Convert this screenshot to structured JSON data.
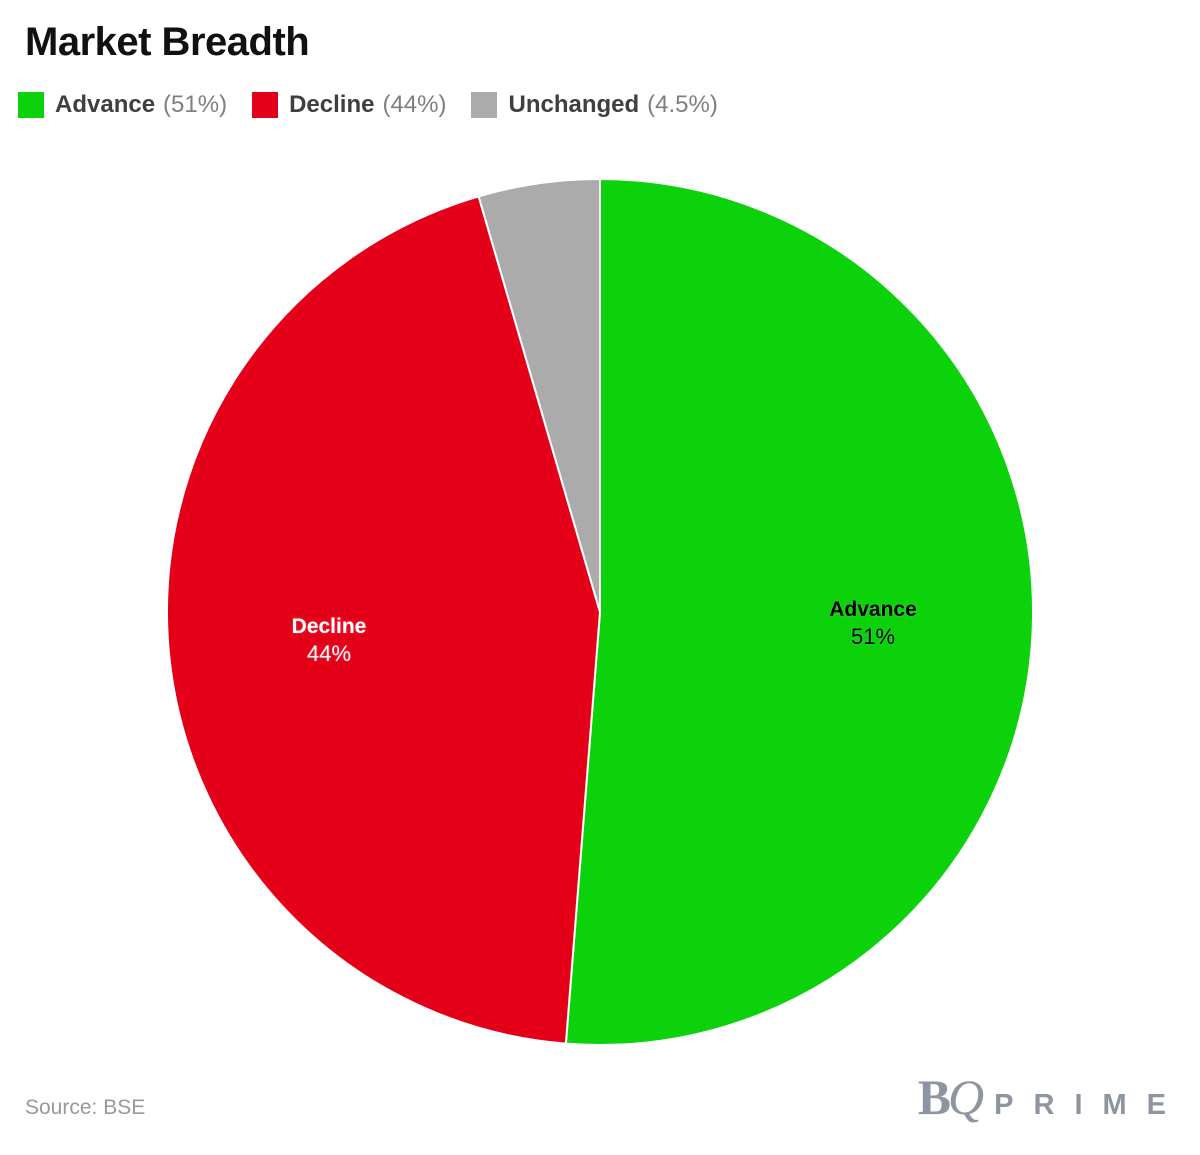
{
  "title": "Market Breadth",
  "source": "Source: BSE",
  "logo": {
    "b": "B",
    "q": "Q",
    "prime": "PRIME"
  },
  "chart_data": {
    "type": "pie",
    "title": "Market Breadth",
    "legend_position": "top",
    "direction": "clockwise",
    "start_angle_deg": 0,
    "border_color": "#ffffff",
    "label_radius_fraction": 0.63,
    "slices": [
      {
        "label": "Advance",
        "value": 51,
        "value_label": "(51%)",
        "pct_label": "51%",
        "color": "#0bd20b",
        "label_color": "#000000",
        "show_label": true
      },
      {
        "label": "Decline",
        "value": 44,
        "value_label": "(44%)",
        "pct_label": "44%",
        "color": "#e50019",
        "label_color": "#ffffff",
        "show_label": true
      },
      {
        "label": "Unchanged",
        "value": 4.5,
        "value_label": "(4.5%)",
        "pct_label": "4.5%",
        "color": "#ababab",
        "label_color": "#000000",
        "show_label": false
      }
    ]
  }
}
